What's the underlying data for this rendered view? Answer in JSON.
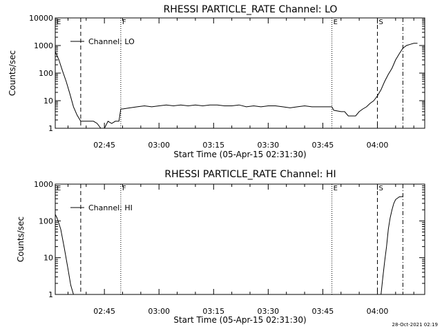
{
  "timestamp": "28-Oct-2021 02:19",
  "chart_data": [
    {
      "type": "line",
      "title": "RHESSI PARTICLE_RATE Channel: LO",
      "xlabel": "Start Time (05-Apr-15 02:31:30)",
      "ylabel": "Counts/sec",
      "yscale": "log",
      "ylim": [
        1,
        10000
      ],
      "y_ticks": [
        "1",
        "10",
        "100",
        "1000",
        "10000"
      ],
      "xlim": [
        "02:31:30",
        "04:13:00"
      ],
      "x_ticks": [
        "02:45",
        "03:00",
        "03:15",
        "03:30",
        "03:45",
        "04:00"
      ],
      "legend": "top-left",
      "series": [
        {
          "name": "Channel: LO",
          "x": [
            "02:31:30",
            "02:32:30",
            "02:33:30",
            "02:34:30",
            "02:35:30",
            "02:36:30",
            "02:37:30",
            "02:38:30",
            "02:39:00",
            "02:40:00",
            "02:41:00",
            "02:42:00",
            "02:43:00",
            "02:44:00",
            "02:45:00",
            "02:46:00",
            "02:47:00",
            "02:48:00",
            "02:49:00",
            "02:49:30",
            "02:50:00",
            "02:52:00",
            "02:54:00",
            "02:56:00",
            "02:58:00",
            "03:00:00",
            "03:02:00",
            "03:04:00",
            "03:06:00",
            "03:08:00",
            "03:10:00",
            "03:12:00",
            "03:14:00",
            "03:16:00",
            "03:18:00",
            "03:20:00",
            "03:22:00",
            "03:24:00",
            "03:26:00",
            "03:28:00",
            "03:30:00",
            "03:32:00",
            "03:34:00",
            "03:36:00",
            "03:38:00",
            "03:40:00",
            "03:42:00",
            "03:44:00",
            "03:46:00",
            "03:47:30",
            "03:48:00",
            "03:50:00",
            "03:51:00",
            "03:52:00",
            "03:53:00",
            "03:54:00",
            "03:55:00",
            "03:56:00",
            "03:57:00",
            "03:58:00",
            "03:59:00",
            "04:00:00",
            "04:01:00",
            "04:02:00",
            "04:03:00",
            "04:04:00",
            "04:05:00",
            "04:06:00",
            "04:07:00",
            "04:08:00",
            "04:09:00",
            "04:10:00",
            "04:11:00"
          ],
          "y": [
            600,
            300,
            120,
            50,
            18,
            6,
            3,
            1.8,
            1.8,
            1.8,
            1.8,
            1.8,
            1.5,
            1,
            1,
            1.8,
            1.5,
            1.8,
            1.8,
            5,
            5,
            5.5,
            6,
            6.5,
            6,
            6.5,
            7,
            6.5,
            7,
            6.5,
            7,
            6.5,
            7,
            7,
            6.5,
            6.5,
            7,
            6,
            6.5,
            6,
            6.5,
            6.5,
            6,
            5.5,
            6,
            6.5,
            6,
            6,
            6,
            6,
            4.5,
            4,
            4,
            2.8,
            2.8,
            2.8,
            4,
            5,
            6,
            8,
            10,
            15,
            25,
            50,
            90,
            150,
            300,
            500,
            800,
            1000,
            1100,
            1200,
            1200
          ]
        }
      ],
      "markers": [
        {
          "label": "E",
          "x": "02:31:30",
          "style": "solid"
        },
        {
          "label": "",
          "x": "02:38:30",
          "style": "dashed"
        },
        {
          "label": "F",
          "x": "02:49:30",
          "style": "dotted"
        },
        {
          "label": "E",
          "x": "03:47:30",
          "style": "dotted"
        },
        {
          "label": "S",
          "x": "04:00:00",
          "style": "dashed"
        },
        {
          "label": "",
          "x": "04:07:00",
          "style": "dashdot"
        }
      ]
    },
    {
      "type": "line",
      "title": "RHESSI PARTICLE_RATE Channel: HI",
      "xlabel": "Start Time (05-Apr-15 02:31:30)",
      "ylabel": "Counts/sec",
      "yscale": "log",
      "ylim": [
        1,
        1000
      ],
      "y_ticks": [
        "1",
        "10",
        "100",
        "1000"
      ],
      "xlim": [
        "02:31:30",
        "04:13:00"
      ],
      "x_ticks": [
        "02:45",
        "03:00",
        "03:15",
        "03:30",
        "03:45",
        "04:00"
      ],
      "legend": "top-left",
      "series": [
        {
          "name": "Channel: HI",
          "x": [
            "02:31:30",
            "02:32:00",
            "02:33:00",
            "02:34:00",
            "02:35:00",
            "02:35:45",
            "02:36:30",
            "04:01:00",
            "04:01:30",
            "04:02:00",
            "04:02:30",
            "04:03:00",
            "04:03:30",
            "04:04:00",
            "04:04:30",
            "04:05:00",
            "04:06:00",
            "04:07:00"
          ],
          "y": [
            150,
            120,
            60,
            18,
            5,
            1.8,
            1,
            1,
            3,
            8,
            20,
            60,
            120,
            200,
            300,
            380,
            450,
            460
          ]
        }
      ],
      "markers": [
        {
          "label": "E",
          "x": "02:31:30",
          "style": "solid"
        },
        {
          "label": "",
          "x": "02:38:30",
          "style": "dashed"
        },
        {
          "label": "F",
          "x": "02:49:30",
          "style": "dotted"
        },
        {
          "label": "E",
          "x": "03:47:30",
          "style": "dotted"
        },
        {
          "label": "S",
          "x": "04:00:00",
          "style": "dashed"
        },
        {
          "label": "",
          "x": "04:07:00",
          "style": "dashdot"
        }
      ]
    }
  ]
}
